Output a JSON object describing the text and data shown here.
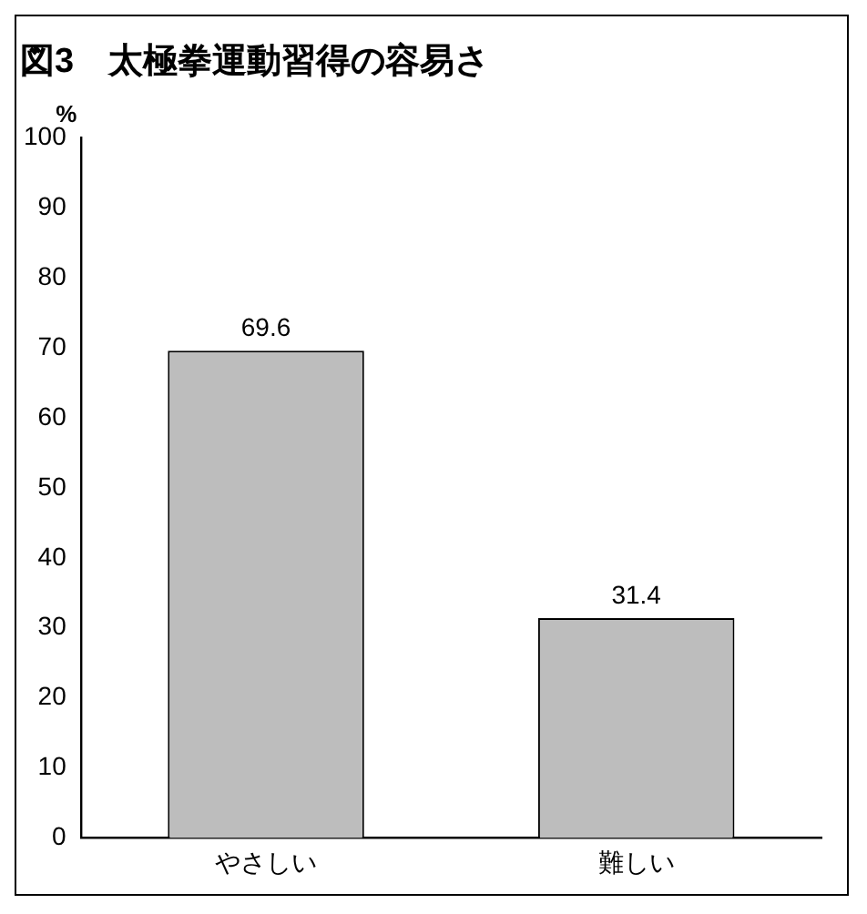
{
  "chart_data": {
    "type": "bar",
    "title": "図3　太極拳運動習得の容易さ",
    "ylabel": "%",
    "categories": [
      "やさしい",
      "難しい"
    ],
    "values": [
      69.6,
      31.4
    ],
    "color": "#bdbdbd",
    "ylim": [
      0,
      100
    ],
    "yticks": [
      0,
      10,
      20,
      30,
      40,
      50,
      60,
      70,
      80,
      90,
      100
    ],
    "grid": false,
    "legend": false,
    "data_labels": true
  }
}
